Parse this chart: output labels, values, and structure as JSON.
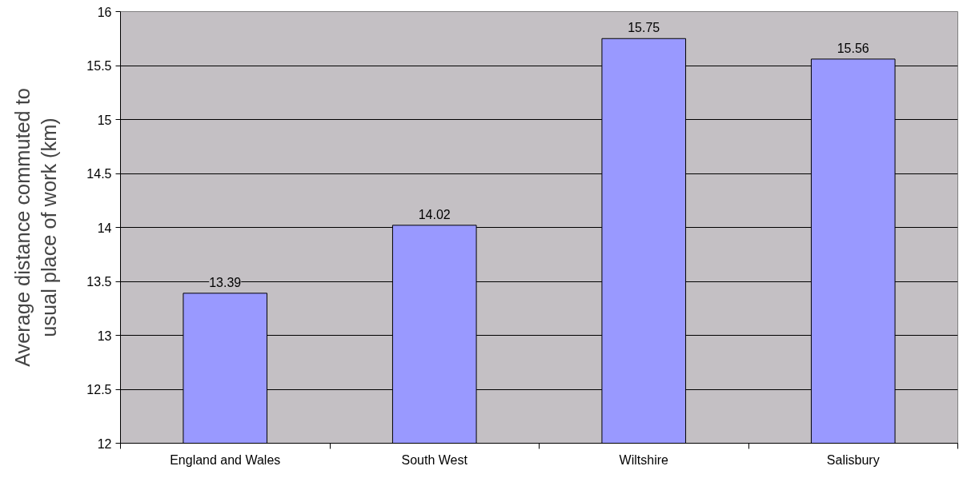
{
  "chart_data": {
    "type": "bar",
    "ylabel": "Average distance commuted to\nusual place of work (km)",
    "categories": [
      "England and Wales",
      "South West",
      "Wiltshire",
      "Salisbury"
    ],
    "values": [
      13.39,
      14.02,
      15.75,
      15.56
    ],
    "color": "#9999ff",
    "ylim": [
      12,
      16
    ],
    "yticks": [
      12,
      12.5,
      13,
      13.5,
      14,
      14.5,
      15,
      15.5,
      16
    ],
    "grid": "y",
    "data_labels": true
  }
}
